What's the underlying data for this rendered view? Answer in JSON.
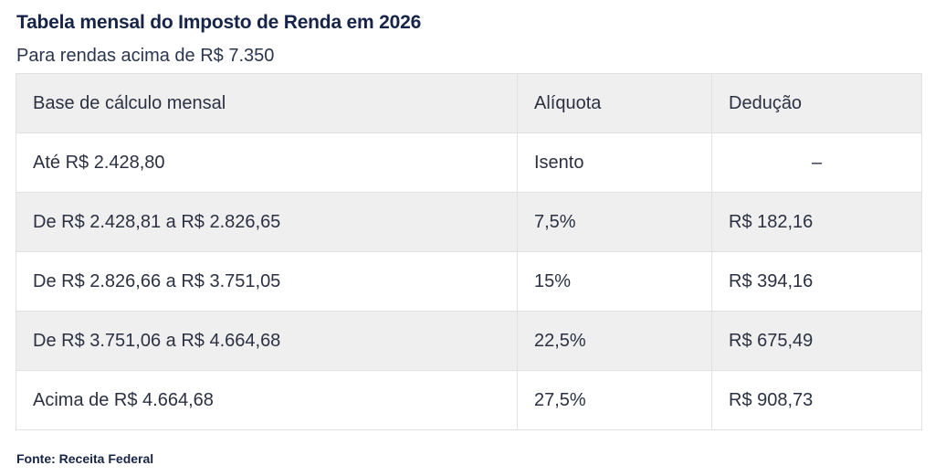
{
  "header": {
    "title": "Tabela mensal do Imposto de Renda em 2026",
    "subtitle": "Para rendas acima de R$ 7.350"
  },
  "table": {
    "columns": [
      "Base de cálculo mensal",
      "Alíquota",
      "Dedução"
    ],
    "rows": [
      [
        "Até R$ 2.428,80",
        "Isento",
        "–"
      ],
      [
        "De R$ 2.428,81 a R$ 2.826,65",
        "7,5%",
        "R$ 182,16"
      ],
      [
        "De R$ 2.826,66 a R$ 3.751,05",
        "15%",
        "R$ 394,16"
      ],
      [
        "De R$ 3.751,06 a R$ 4.664,68",
        "22,5%",
        "R$ 675,49"
      ],
      [
        "Acima de R$ 4.664,68",
        "27,5%",
        "R$ 908,73"
      ]
    ]
  },
  "footer": {
    "source": "Fonte: Receita Federal"
  }
}
